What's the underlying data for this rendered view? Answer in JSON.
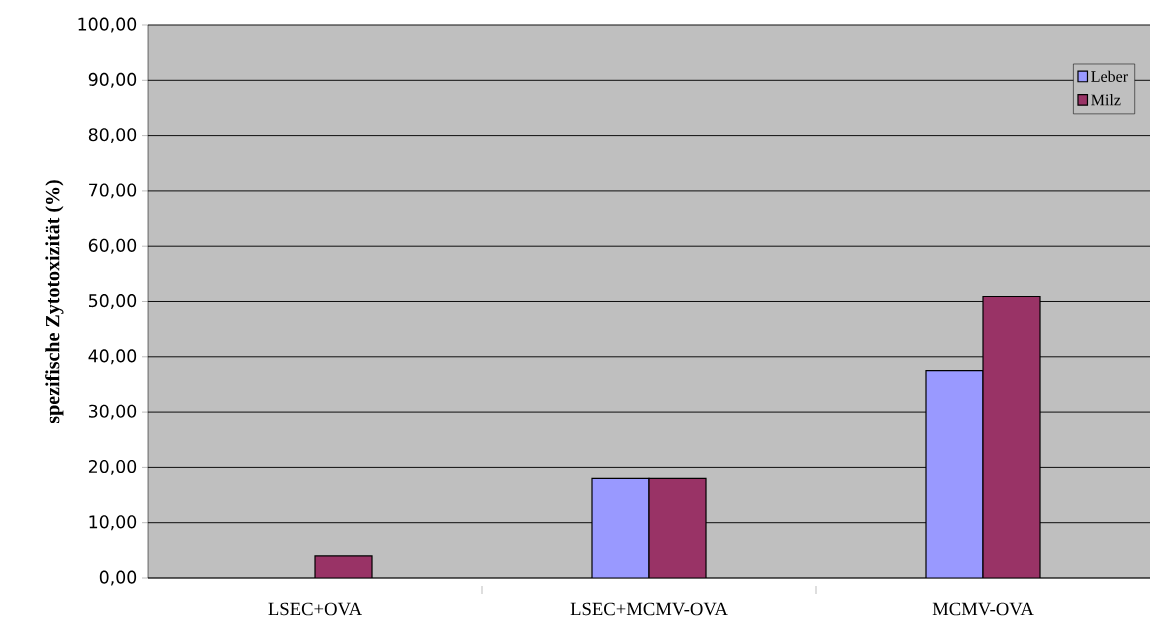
{
  "chart_data": {
    "type": "bar",
    "ylabel": "spezifische Zytotoxizität (%)",
    "categories": [
      "LSEC+OVA",
      "LSEC+MCMV-OVA",
      "MCMV-OVA"
    ],
    "series": [
      {
        "name": "Leber",
        "color": "#9999ff",
        "values": [
          0,
          18.0,
          37.5
        ]
      },
      {
        "name": "Milz",
        "color": "#993366",
        "values": [
          4.0,
          18.0,
          50.9
        ]
      }
    ],
    "ylim": [
      0,
      100
    ],
    "yticks": [
      {
        "value": 0,
        "label": "0,00"
      },
      {
        "value": 10,
        "label": "10,00"
      },
      {
        "value": 20,
        "label": "20,00"
      },
      {
        "value": 30,
        "label": "30,00"
      },
      {
        "value": 40,
        "label": "40,00"
      },
      {
        "value": 50,
        "label": "50,00"
      },
      {
        "value": 60,
        "label": "60,00"
      },
      {
        "value": 70,
        "label": "70,00"
      },
      {
        "value": 80,
        "label": "80,00"
      },
      {
        "value": 90,
        "label": "90,00"
      },
      {
        "value": 100,
        "label": "100,00"
      }
    ],
    "grid": "y",
    "legend": "top right"
  }
}
